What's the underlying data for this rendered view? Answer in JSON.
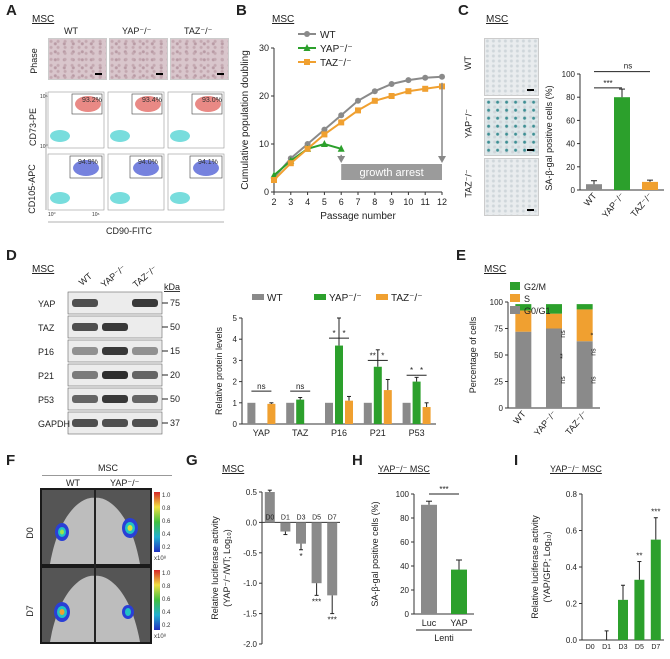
{
  "panel_letters": [
    "A",
    "B",
    "C",
    "D",
    "E",
    "F",
    "G",
    "H",
    "I"
  ],
  "cell_label": "MSC",
  "yap_msc_label": "YAP⁻/⁻ MSC",
  "genotypes": [
    "WT",
    "YAP⁻/⁻",
    "TAZ⁻/⁻"
  ],
  "panelA": {
    "row_labels": [
      "Phase",
      "CD73-PE",
      "CD105-APC"
    ],
    "x_label": "CD90-FITC",
    "cd73_percent": [
      "93.2%",
      "93.4%",
      "93.0%"
    ],
    "cd105_percent": [
      "94.9%",
      "94.0%",
      "94.1%"
    ],
    "axis_ticks": [
      "10⁶",
      "10⁰",
      "10⁰",
      "10⁶"
    ]
  },
  "chart_data": [
    {
      "panel": "B",
      "type": "line",
      "ylabel": "Cumulative population doubling",
      "xlabel": "Passage number",
      "x_ticks": [
        2,
        3,
        4,
        5,
        6,
        7,
        8,
        9,
        10,
        11,
        12
      ],
      "y_ticks": [
        0,
        10,
        20,
        30
      ],
      "ylim": [
        0,
        30
      ],
      "series": [
        {
          "name": "WT",
          "color": "#8a8a8a",
          "x": [
            2,
            3,
            4,
            5,
            6,
            7,
            8,
            9,
            10,
            11,
            12
          ],
          "values": [
            3,
            7,
            10,
            13,
            16,
            19,
            21,
            22.5,
            23.3,
            23.8,
            24
          ]
        },
        {
          "name": "YAP⁻/⁻",
          "color": "#2ca02c",
          "x": [
            2,
            3,
            4,
            5,
            6
          ],
          "values": [
            3.5,
            6.5,
            9,
            10,
            9
          ]
        },
        {
          "name": "TAZ⁻/⁻",
          "color": "#f0a030",
          "x": [
            2,
            3,
            4,
            5,
            6,
            7,
            8,
            9,
            10,
            11,
            12
          ],
          "values": [
            2.5,
            6,
            9,
            12,
            14.5,
            17,
            19,
            20,
            21,
            21.5,
            22
          ]
        }
      ],
      "annotation": "growth arrest"
    },
    {
      "panel": "C",
      "type": "bar",
      "ylabel": "SA-β-gal positive cells (%)",
      "categories": [
        "WT",
        "YAP⁻/⁻",
        "TAZ⁻/⁻"
      ],
      "values": [
        5,
        80,
        7
      ],
      "errors": [
        3,
        7,
        1.5
      ],
      "colors": [
        "#8a8a8a",
        "#2ca02c",
        "#f0a030"
      ],
      "y_ticks": [
        0,
        20,
        40,
        60,
        80,
        100
      ],
      "ylim": [
        0,
        100
      ],
      "significance": [
        "***",
        "ns"
      ]
    },
    {
      "panel": "D",
      "type": "bar",
      "ylabel": "Relative protein levels",
      "categories": [
        "YAP",
        "TAZ",
        "P16",
        "P21",
        "P53"
      ],
      "series": [
        {
          "name": "WT",
          "color": "#8a8a8a",
          "values": [
            1,
            1,
            1,
            1,
            1
          ],
          "errors": [
            0,
            0,
            0,
            0,
            0
          ]
        },
        {
          "name": "YAP⁻/⁻",
          "color": "#2ca02c",
          "values": [
            0,
            1.15,
            3.7,
            2.7,
            2.0
          ],
          "errors": [
            0,
            0.1,
            1.3,
            0.8,
            0.2
          ]
        },
        {
          "name": "TAZ⁻/⁻",
          "color": "#f0a030",
          "values": [
            0.95,
            0,
            1.1,
            1.6,
            0.8
          ],
          "errors": [
            0.05,
            0,
            0.2,
            0.5,
            0.2
          ]
        }
      ],
      "y_ticks": [
        0,
        1,
        2,
        3,
        4,
        5
      ],
      "ylim": [
        0,
        5
      ],
      "significance": [
        "ns",
        "ns",
        "*",
        "*",
        "**",
        "*",
        "*",
        "*"
      ]
    },
    {
      "panel": "E",
      "type": "bar",
      "stacked": true,
      "ylabel": "Percentage of cells",
      "categories": [
        "WT",
        "YAP⁻/⁻",
        "TAZ⁻/⁻"
      ],
      "series": [
        {
          "name": "G0/G1",
          "color": "#8a8a8a",
          "values": [
            72,
            75,
            63
          ]
        },
        {
          "name": "S",
          "color": "#f0a030",
          "values": [
            20,
            14,
            30
          ]
        },
        {
          "name": "G2/M",
          "color": "#2ca02c",
          "values": [
            6,
            9,
            5
          ]
        }
      ],
      "y_ticks": [
        0,
        25,
        50,
        75,
        100
      ],
      "ylim": [
        0,
        100
      ],
      "significance": [
        "**",
        "ns",
        "ns",
        "*",
        "ns",
        "ns"
      ]
    },
    {
      "panel": "G",
      "type": "bar",
      "ylabel": "Relative luciferase activity (YAP⁻/⁻/WT; Log₁₀)",
      "categories": [
        "D0",
        "D1",
        "D3",
        "D5",
        "D7"
      ],
      "values": [
        0.5,
        -0.15,
        -0.35,
        -1.0,
        -1.2
      ],
      "errors": [
        0.03,
        0.05,
        0.1,
        0.2,
        0.3
      ],
      "color": "#8a8a8a",
      "y_ticks": [
        0.5,
        0.0,
        -0.5,
        -1.0,
        -1.5,
        -2.0
      ],
      "ylim": [
        -2.0,
        0.5
      ],
      "significance": [
        "",
        "",
        "*",
        "***",
        "***"
      ]
    },
    {
      "panel": "H",
      "type": "bar",
      "ylabel": "SA-β-gal positive cells (%)",
      "xlabel": "Lenti",
      "categories": [
        "Luc",
        "YAP"
      ],
      "values": [
        91,
        37
      ],
      "errors": [
        3,
        8
      ],
      "colors": [
        "#8a8a8a",
        "#2ca02c"
      ],
      "y_ticks": [
        0,
        20,
        40,
        60,
        80,
        100
      ],
      "ylim": [
        0,
        100
      ],
      "significance": [
        "***"
      ]
    },
    {
      "panel": "I",
      "type": "bar",
      "ylabel": "Relative luciferase activity (YAP/GFP; Log₁₀)",
      "categories": [
        "D0",
        "D1",
        "D3",
        "D5",
        "D7"
      ],
      "values": [
        0,
        0,
        0.22,
        0.33,
        0.55
      ],
      "errors": [
        0,
        0.05,
        0.08,
        0.1,
        0.12
      ],
      "color": "#2ca02c",
      "y_ticks": [
        0.0,
        0.2,
        0.4,
        0.6,
        0.8
      ],
      "ylim": [
        0,
        0.8
      ],
      "significance": [
        "",
        "",
        "",
        "**",
        "***"
      ]
    }
  ],
  "panelD_blot": {
    "rows": [
      "YAP",
      "TAZ",
      "P16",
      "P21",
      "P53",
      "GAPDH"
    ],
    "kda_label": "kDa",
    "kda": [
      "75",
      "50",
      "15",
      "20",
      "50",
      "37"
    ]
  },
  "panelF": {
    "rows": [
      "D0",
      "D7"
    ],
    "scale": [
      "1.0",
      "0.8",
      "0.6",
      "0.4",
      "0.2"
    ],
    "scale_unit": "x10⁸"
  }
}
